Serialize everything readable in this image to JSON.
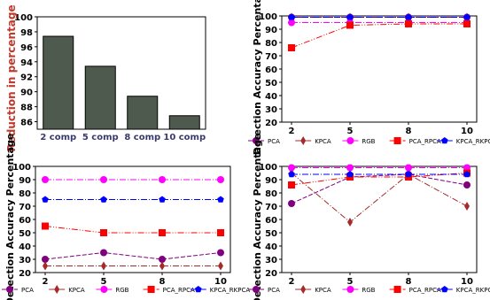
{
  "chart_data": [
    {
      "type": "bar",
      "ylabel": "Reduction in percentage",
      "ylabel_color": "#c0392b",
      "categories": [
        "2 comp",
        "5 comp",
        "8 comp",
        "10 comp"
      ],
      "values": [
        97.4,
        93.4,
        89.4,
        86.8
      ],
      "ylim": [
        85,
        100
      ],
      "yticks": [
        86,
        88,
        90,
        92,
        94,
        96,
        98,
        100
      ],
      "bar_color": "#4f5a4f",
      "category_color": "#3a3a6e"
    },
    {
      "type": "line",
      "ylabel": "Detection Accuracy Percentage",
      "x": [
        2,
        5,
        8,
        10
      ],
      "ylim": [
        20,
        100
      ],
      "yticks": [
        20,
        30,
        40,
        50,
        60,
        70,
        80,
        90,
        100
      ],
      "series": [
        {
          "name": "PCA",
          "values": [
            99,
            99,
            99,
            99
          ]
        },
        {
          "name": "KPCA",
          "values": [
            99,
            99,
            99,
            99
          ]
        },
        {
          "name": "RGB",
          "values": [
            95,
            95,
            95,
            95
          ]
        },
        {
          "name": "PCA_RPCA",
          "values": [
            76,
            93,
            94,
            94
          ]
        },
        {
          "name": "KPCA_RKPCA",
          "values": [
            99,
            99,
            99,
            99
          ]
        }
      ]
    },
    {
      "type": "line",
      "ylabel": "Detection Accuracy Percentage",
      "x": [
        2,
        5,
        8,
        10
      ],
      "ylim": [
        20,
        100
      ],
      "yticks": [
        20,
        30,
        40,
        50,
        60,
        70,
        80,
        90,
        100
      ],
      "series": [
        {
          "name": "PCA",
          "values": [
            30,
            35,
            30,
            35
          ]
        },
        {
          "name": "KPCA",
          "values": [
            25,
            25,
            25,
            25
          ]
        },
        {
          "name": "RGB",
          "values": [
            90,
            90,
            90,
            90
          ]
        },
        {
          "name": "PCA_RPCA",
          "values": [
            55,
            50,
            50,
            50
          ]
        },
        {
          "name": "KPCA_RKPCA",
          "values": [
            75,
            75,
            75,
            75
          ]
        }
      ]
    },
    {
      "type": "line",
      "ylabel": "Detection Accuracy Percentage",
      "x": [
        2,
        5,
        8,
        10
      ],
      "ylim": [
        20,
        100
      ],
      "yticks": [
        20,
        30,
        40,
        50,
        60,
        70,
        80,
        90,
        100
      ],
      "series": [
        {
          "name": "PCA",
          "values": [
            72,
            92,
            94,
            86
          ]
        },
        {
          "name": "KPCA",
          "values": [
            95,
            58,
            94,
            70
          ]
        },
        {
          "name": "RGB",
          "values": [
            99,
            99,
            99,
            99
          ]
        },
        {
          "name": "PCA_RPCA",
          "values": [
            86,
            92,
            92,
            95
          ]
        },
        {
          "name": "KPCA_RKPCA",
          "values": [
            94,
            94,
            94,
            94
          ]
        }
      ]
    }
  ],
  "series_styles": {
    "PCA": {
      "color": "#800080",
      "marker": "circle",
      "dash": "5,2"
    },
    "KPCA": {
      "color": "#a52a2a",
      "marker": "diamond",
      "dash": "7,2,1,2"
    },
    "RGB": {
      "color": "#ff00ff",
      "marker": "circle",
      "dash": "7,2,1,2"
    },
    "PCA_RPCA": {
      "color": "#ff0000",
      "marker": "square",
      "dash": "7,2,1,2,1,2"
    },
    "KPCA_RKPCA": {
      "color": "#0000ff",
      "marker": "pentagon",
      "dash": "7,2,1,2"
    }
  }
}
